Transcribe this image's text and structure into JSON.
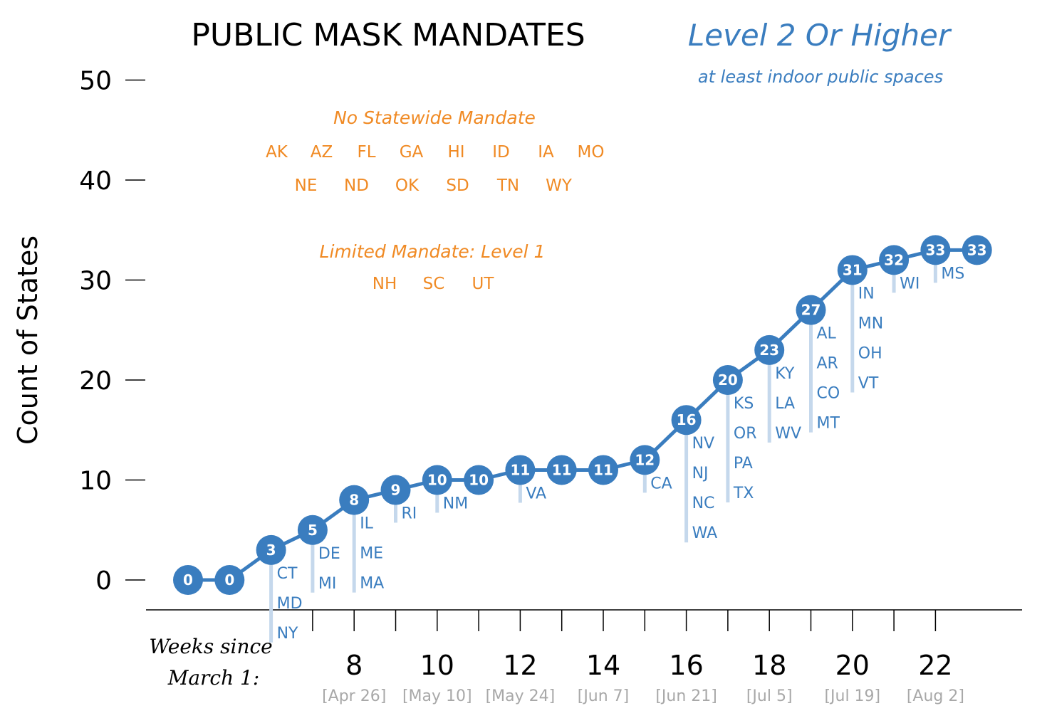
{
  "chart_data": {
    "type": "line",
    "title": "PUBLIC MASK MANDATES",
    "series_title": "Level 2 Or Higher",
    "series_subtitle": "at least indoor public spaces",
    "ylabel": "Count of States",
    "xlabel_line1": "Weeks since",
    "xlabel_line2": "March 1:",
    "ylim": [
      0,
      50
    ],
    "yticks": [
      0,
      10,
      20,
      30,
      40,
      50
    ],
    "xlim": [
      4,
      24
    ],
    "xticks": [
      8,
      10,
      12,
      14,
      16,
      18,
      20,
      22
    ],
    "xtick_dates": [
      "[Apr 26]",
      "[May 10]",
      "[May 24]",
      "[Jun 7]",
      "[Jun 21]",
      "[Jul 5]",
      "[Jul 19]",
      "[Aug 2]"
    ],
    "points": [
      {
        "x": 4,
        "y": 0,
        "label": "0",
        "states": []
      },
      {
        "x": 5,
        "y": 0,
        "label": "0",
        "states": []
      },
      {
        "x": 6,
        "y": 3,
        "label": "3",
        "states": [
          "CT",
          "MD",
          "NY"
        ]
      },
      {
        "x": 7,
        "y": 5,
        "label": "5",
        "states": [
          "DE",
          "MI"
        ]
      },
      {
        "x": 8,
        "y": 8,
        "label": "8",
        "states": [
          "IL",
          "ME",
          "MA"
        ]
      },
      {
        "x": 9,
        "y": 9,
        "label": "9",
        "states": [
          "RI"
        ]
      },
      {
        "x": 10,
        "y": 10,
        "label": "10",
        "states": [
          "NM"
        ]
      },
      {
        "x": 11,
        "y": 10,
        "label": "10",
        "states": []
      },
      {
        "x": 12,
        "y": 11,
        "label": "11",
        "states": [
          "VA"
        ]
      },
      {
        "x": 13,
        "y": 11,
        "label": "11",
        "states": []
      },
      {
        "x": 14,
        "y": 11,
        "label": "11",
        "states": []
      },
      {
        "x": 15,
        "y": 12,
        "label": "12",
        "states": [
          "CA"
        ]
      },
      {
        "x": 16,
        "y": 16,
        "label": "16",
        "states": [
          "NV",
          "NJ",
          "NC",
          "WA"
        ]
      },
      {
        "x": 17,
        "y": 20,
        "label": "20",
        "states": [
          "KS",
          "OR",
          "PA",
          "TX"
        ]
      },
      {
        "x": 18,
        "y": 23,
        "label": "23",
        "states": [
          "KY",
          "LA",
          "WV"
        ]
      },
      {
        "x": 19,
        "y": 27,
        "label": "27",
        "states": [
          "AL",
          "AR",
          "CO",
          "MT"
        ]
      },
      {
        "x": 20,
        "y": 31,
        "label": "31",
        "states": [
          "IN",
          "MN",
          "OH",
          "VT"
        ]
      },
      {
        "x": 21,
        "y": 32,
        "label": "32",
        "states": [
          "WI"
        ]
      },
      {
        "x": 22,
        "y": 33,
        "label": "33",
        "states": [
          "MS"
        ]
      },
      {
        "x": 23,
        "y": 33,
        "label": "33",
        "states": []
      }
    ],
    "no_mandate": {
      "heading": "No Statewide Mandate",
      "row1": [
        "AK",
        "AZ",
        "FL",
        "GA",
        "HI",
        "ID",
        "IA",
        "MO"
      ],
      "row2": [
        "NE",
        "ND",
        "OK",
        "SD",
        "TN",
        "WY"
      ]
    },
    "limited_mandate": {
      "heading": "Limited Mandate: Level 1",
      "states": [
        "NH",
        "SC",
        "UT"
      ]
    },
    "colors": {
      "line": "#3a7dbf",
      "stem": "#c5d8ec",
      "accent_orange": "#f08a24",
      "date_gray": "#a8a8a8"
    },
    "grid": false
  }
}
